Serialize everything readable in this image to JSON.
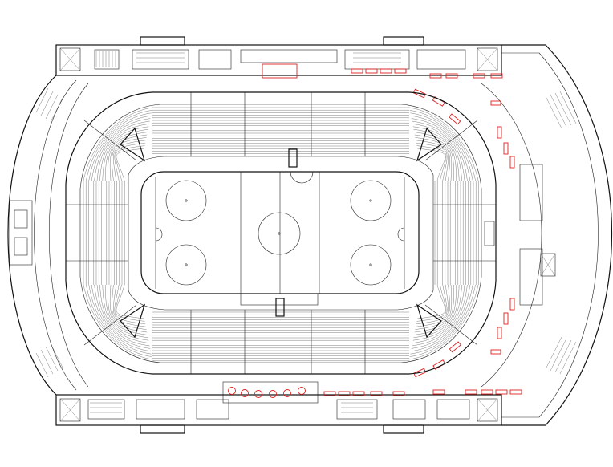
{
  "plan": {
    "label_top_room": "",
    "label_top_box": "",
    "label_right_concourse": "",
    "label_bottom_box": "",
    "label_left_marker": ""
  },
  "colors": {
    "linework": "#111111",
    "concession_markers": "#e02020",
    "annotations": "#1a3fd8",
    "background": "#ffffff"
  },
  "rink": {
    "faceoff_circles": 5,
    "goal_creases": 2,
    "center_line": true,
    "blue_lines": 2
  }
}
